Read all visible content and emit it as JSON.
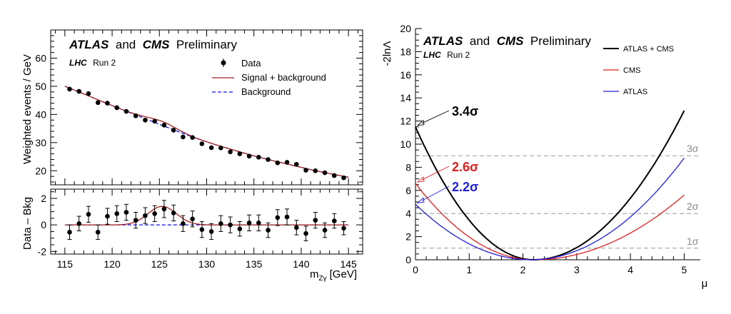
{
  "chart_data": [
    {
      "id": "left",
      "type": "scatter",
      "title_parts": [
        "ATLAS",
        "and",
        "CMS",
        "Preliminary"
      ],
      "subtitle_parts": [
        "LHC",
        "Run 2"
      ],
      "xlabel": "m",
      "xlabel_sub": "Zγ",
      "xlabel_unit": "[GeV]",
      "xlim": [
        113.5,
        146.5
      ],
      "xticks": [
        115,
        120,
        125,
        130,
        135,
        140,
        145
      ],
      "top": {
        "ylabel": "Weighted events / GeV",
        "ylim": [
          15,
          70
        ],
        "yticks": [
          20,
          30,
          40,
          50,
          60
        ],
        "legend": [
          "Data",
          "Signal + background",
          "Background"
        ],
        "data_x": [
          115.5,
          116.5,
          117.5,
          118.5,
          119.5,
          120.5,
          121.5,
          122.5,
          123.5,
          124.5,
          125.5,
          126.5,
          127.5,
          128.5,
          129.5,
          130.5,
          131.5,
          132.5,
          133.5,
          134.5,
          135.5,
          136.5,
          137.5,
          138.5,
          139.5,
          140.5,
          141.5,
          142.5,
          143.5,
          144.5
        ],
        "data_y": [
          49.0,
          48.2,
          47.4,
          44.2,
          44.0,
          42.4,
          41.1,
          39.5,
          38.0,
          37.6,
          36.2,
          34.4,
          32.0,
          31.8,
          29.6,
          28.2,
          28.1,
          26.7,
          26.0,
          25.2,
          24.8,
          24.0,
          22.8,
          23.0,
          22.3,
          20.2,
          20.0,
          19.3,
          18.3,
          17.5
        ],
        "background_x": [
          115,
          117,
          119,
          121,
          123,
          125,
          127,
          129,
          131,
          133,
          135,
          137,
          139,
          141,
          143,
          145
        ],
        "background_y": [
          50.0,
          47.3,
          44.5,
          41.8,
          39.2,
          36.5,
          33.9,
          31.4,
          29.2,
          27.2,
          25.3,
          23.6,
          22.0,
          20.4,
          19.0,
          17.7
        ],
        "signal_amplitude": 1.4,
        "signal_mean": 125.3,
        "signal_width": 1.5
      },
      "bottom": {
        "ylabel": "Data – Bkg",
        "ylim": [
          -2.2,
          2.7
        ],
        "yticks": [
          -2,
          0,
          2
        ],
        "residuals": [
          -0.55,
          0.1,
          0.8,
          -0.55,
          0.65,
          0.85,
          0.95,
          0.35,
          0.7,
          0.85,
          1.2,
          0.9,
          0.1,
          0.45,
          -0.35,
          -0.5,
          0.1,
          0.0,
          -0.3,
          0.15,
          0.15,
          -0.4,
          0.55,
          0.6,
          -0.2,
          -0.65,
          0.35,
          -0.4,
          0.3,
          -0.25
        ],
        "errors": [
          0.55,
          0.55,
          0.6,
          0.55,
          0.6,
          0.6,
          0.6,
          0.6,
          0.6,
          0.6,
          0.65,
          0.6,
          0.6,
          0.6,
          0.6,
          0.6,
          0.6,
          0.6,
          0.55,
          0.6,
          0.6,
          0.55,
          0.6,
          0.6,
          0.55,
          0.55,
          0.6,
          0.55,
          0.55,
          0.5
        ]
      },
      "colors": {
        "signal": "#a02020",
        "background": "#1010dd",
        "data": "#000000"
      }
    },
    {
      "id": "right",
      "type": "line",
      "title_parts": [
        "ATLAS",
        "and",
        "CMS",
        "Preliminary"
      ],
      "subtitle_parts": [
        "LHC",
        "Run 2"
      ],
      "xlabel": "μ",
      "ylabel": "-2lnΛ",
      "xlim": [
        0,
        5.3
      ],
      "ylim": [
        0,
        20
      ],
      "xticks": [
        0,
        1,
        2,
        3,
        4,
        5
      ],
      "yticks": [
        0,
        2,
        4,
        6,
        8,
        10,
        12,
        14,
        16,
        18,
        20
      ],
      "series": [
        {
          "name": "ATLAS + CMS",
          "color": "#000000",
          "minimum": 2.2,
          "value_at_0": 11.5,
          "value_at_5": 12.9
        },
        {
          "name": "CMS",
          "color": "#dd2020",
          "minimum": 2.2,
          "value_at_0": 6.6,
          "value_at_5": 5.6
        },
        {
          "name": "ATLAS",
          "color": "#2020dd",
          "minimum": 2.15,
          "value_at_0": 4.8,
          "value_at_5": 8.8
        }
      ],
      "sigma_lines": [
        {
          "label": "1σ",
          "y": 1
        },
        {
          "label": "2σ",
          "y": 4
        },
        {
          "label": "3σ",
          "y": 9
        }
      ],
      "annotations": [
        {
          "label": "3.4σ",
          "color": "#000000",
          "y": 11.5
        },
        {
          "label": "2.6σ",
          "color": "#dd2020",
          "y": 6.6
        },
        {
          "label": "2.2σ",
          "color": "#2020dd",
          "y": 4.8
        }
      ]
    }
  ]
}
